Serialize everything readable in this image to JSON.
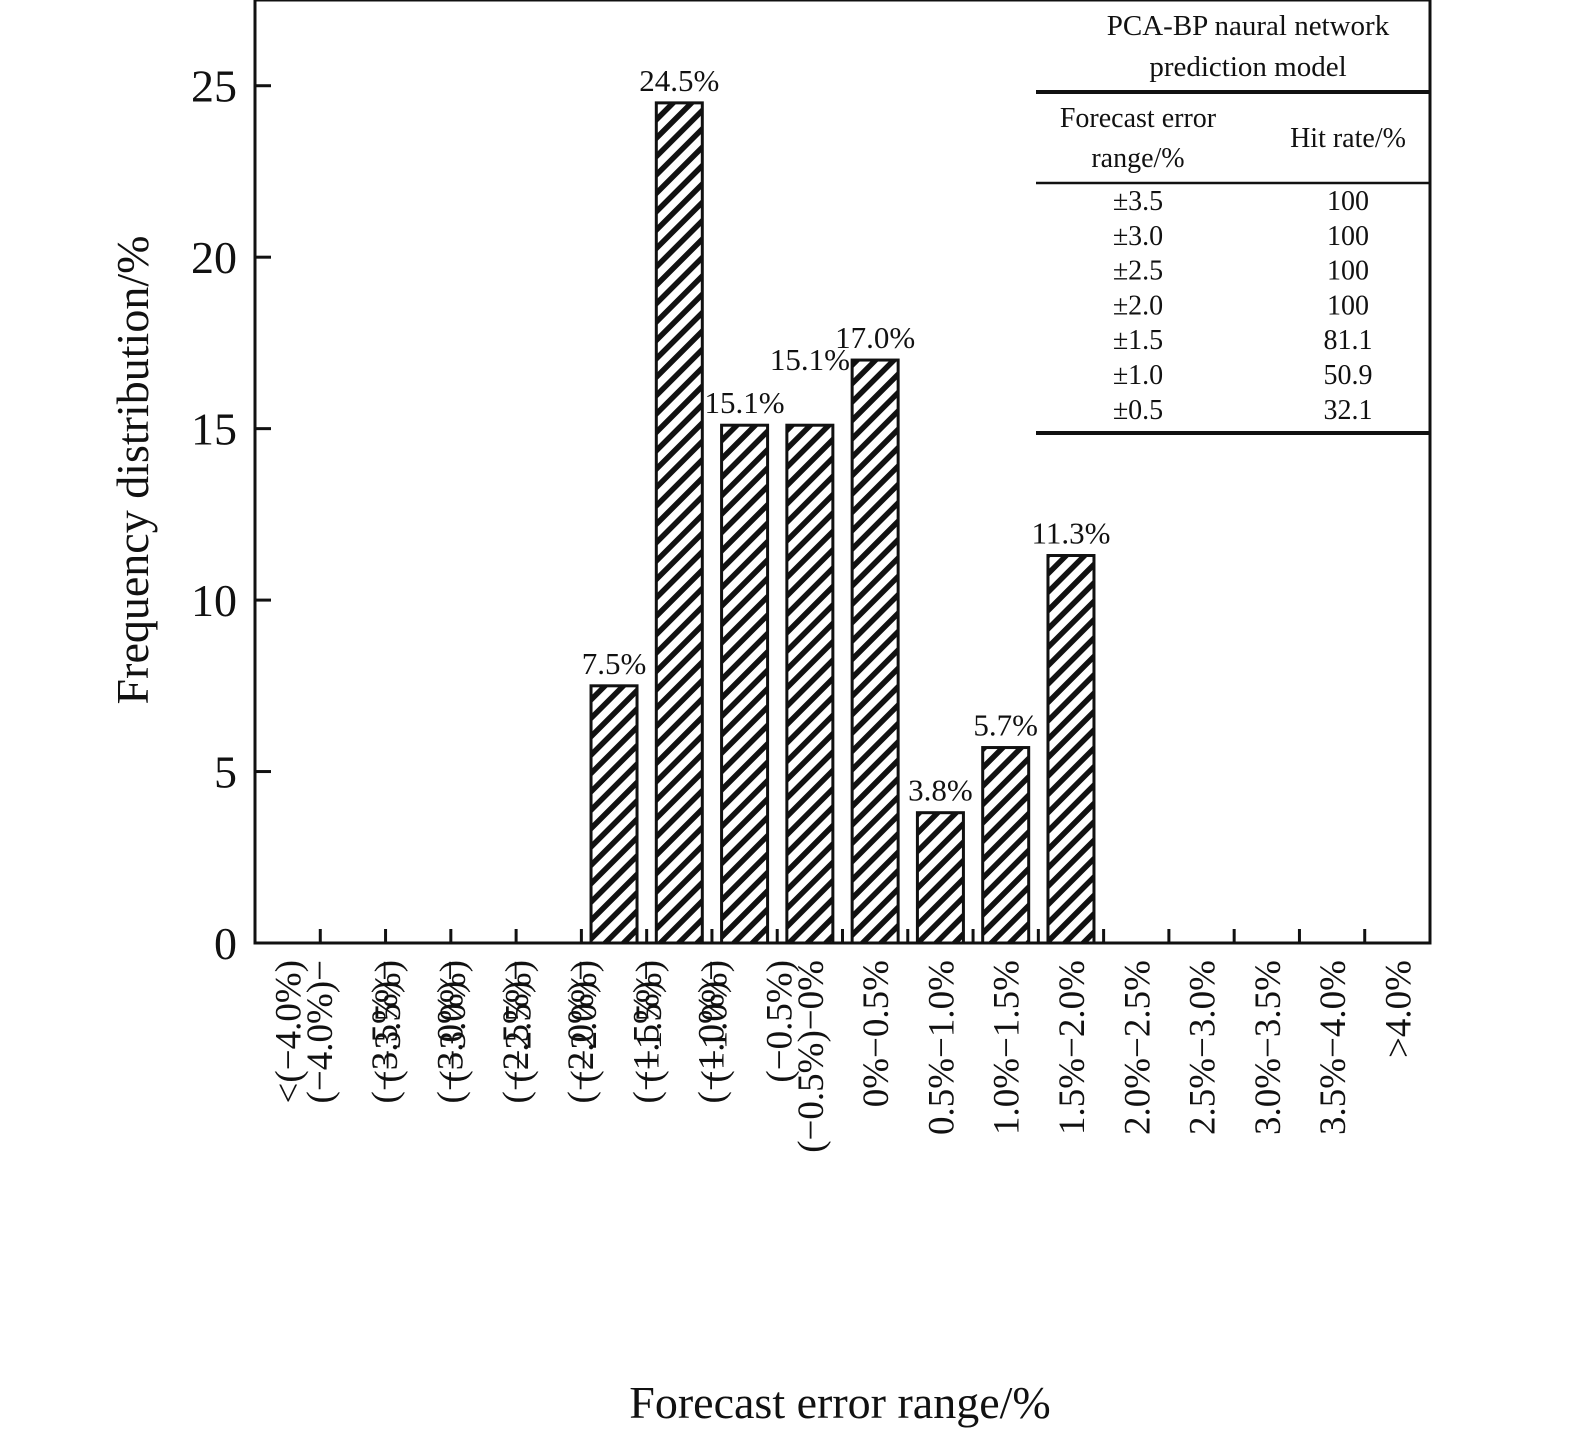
{
  "chart_data": {
    "type": "bar",
    "title": "",
    "xlabel": "Forecast error range/%",
    "ylabel": "Frequency distribution/%",
    "ylim": [
      0,
      27.5
    ],
    "yticks": [
      0,
      5,
      10,
      15,
      20,
      25
    ],
    "grid": false,
    "categories": [
      "<(−4.0%)",
      "(−4.0%)−(−3.5%)",
      "(−3.5%)−(−3.0%)",
      "(−3.0%)−(−2.5%)",
      "(−2.5%)−(−2.0%)",
      "(−2.0%)−(−1.5%)",
      "(−1.5%)−(−1.0%)",
      "(−1.0%)−(−0.5%)",
      "(−0.5%)−0%",
      "0%−0.5%",
      "0.5%−1.0%",
      "1.0%−1.5%",
      "1.5%−2.0%",
      "2.0%−2.5%",
      "2.5%−3.0%",
      "3.0%−3.5%",
      "3.5%−4.0%",
      ">4.0%"
    ],
    "values": [
      0,
      0,
      0,
      0,
      0,
      7.5,
      24.5,
      15.1,
      15.1,
      17.0,
      3.8,
      5.7,
      11.3,
      0,
      0,
      0,
      0,
      0
    ],
    "data_labels": [
      "",
      "",
      "",
      "",
      "",
      "7.5%",
      "24.5%",
      "15.1%",
      "15.1%",
      "17.0%",
      "3.8%",
      "5.7%",
      "11.3%",
      "",
      "",
      "",
      "",
      ""
    ],
    "bar_fill": "hatched",
    "bar_color": "#111111",
    "inset_table": {
      "title_line1": "PCA-BP naural network",
      "title_line2": "prediction model",
      "header_col1_line1": "Forecast error",
      "header_col1_line2": "range/%",
      "header_col2": "Hit rate/%",
      "rows": [
        {
          "range": "±3.5",
          "hit_rate": "100"
        },
        {
          "range": "±3.0",
          "hit_rate": "100"
        },
        {
          "range": "±2.5",
          "hit_rate": "100"
        },
        {
          "range": "±2.0",
          "hit_rate": "100"
        },
        {
          "range": "±1.5",
          "hit_rate": "81.1"
        },
        {
          "range": "±1.0",
          "hit_rate": "50.9"
        },
        {
          "range": "±0.5",
          "hit_rate": "32.1"
        }
      ]
    }
  }
}
